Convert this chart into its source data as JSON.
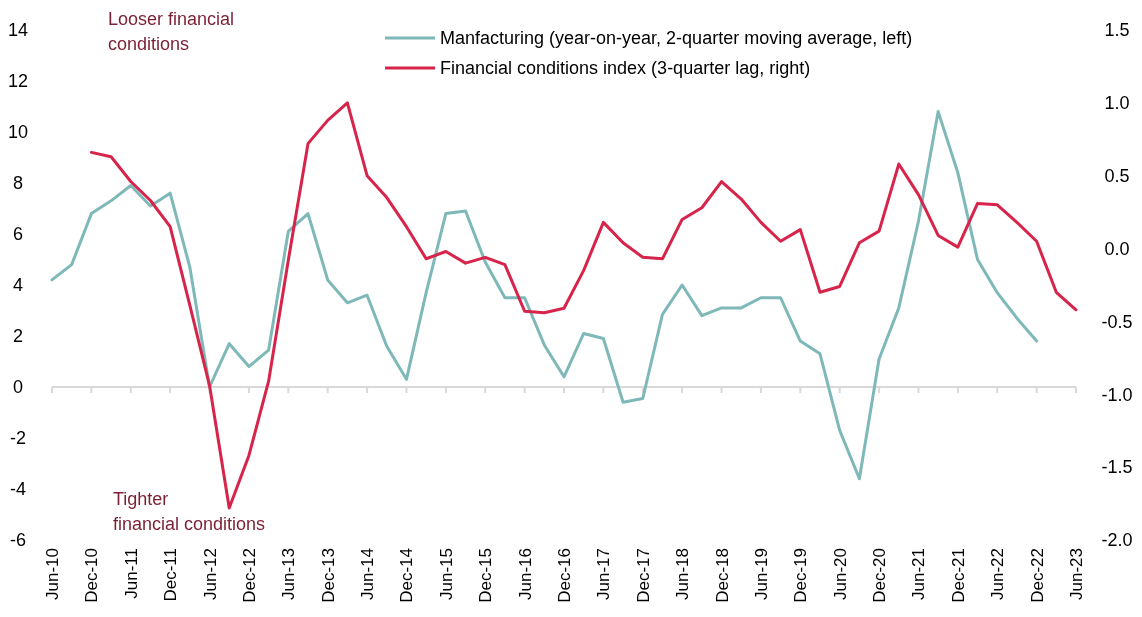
{
  "chart_data": {
    "type": "line",
    "categories": [
      "Jun-10",
      null,
      "Dec-10",
      null,
      "Jun-11",
      null,
      "Dec-11",
      null,
      "Jun-12",
      null,
      "Dec-12",
      null,
      "Jun-13",
      null,
      "Dec-13",
      null,
      "Jun-14",
      null,
      "Dec-14",
      null,
      "Jun-15",
      null,
      "Dec-15",
      null,
      "Jun-16",
      null,
      "Dec-16",
      null,
      "Jun-17",
      null,
      "Dec-17",
      null,
      "Jun-18",
      null,
      "Dec-18",
      null,
      "Jun-19",
      null,
      "Dec-19",
      null,
      "Jun-20",
      null,
      "Dec-20",
      null,
      "Jun-21",
      null,
      "Dec-21",
      null,
      "Jun-22",
      null,
      "Dec-22",
      null,
      "Jun-23"
    ],
    "series": [
      {
        "name": "Manfacturing (year-on-year, 2-quarter moving average, left)",
        "color": "#7fb8b8",
        "values": [
          4.2,
          4.8,
          6.8,
          7.3,
          7.9,
          7.1,
          7.6,
          4.7,
          0.0,
          1.7,
          0.8,
          1.45,
          6.1,
          6.8,
          4.2,
          3.3,
          3.6,
          1.6,
          0.3,
          3.7,
          6.8,
          6.9,
          4.9,
          3.5,
          3.5,
          1.65,
          0.4,
          2.1,
          1.9,
          -0.6,
          -0.45,
          2.85,
          4.0,
          2.8,
          3.1,
          3.1,
          3.5,
          3.5,
          1.8,
          1.3,
          -1.7,
          -3.6,
          1.1,
          3.1,
          6.5,
          10.8,
          8.4,
          5.0,
          3.7,
          2.7,
          1.8,
          null,
          null
        ]
      },
      {
        "name": "Financial conditions index (3-quarter lag, right)",
        "color": "#d6244a",
        "axis": "y2",
        "values": [
          null,
          null,
          0.66,
          0.63,
          0.46,
          0.33,
          0.15,
          -0.39,
          -0.94,
          -1.78,
          -1.42,
          -0.91,
          -0.08,
          0.72,
          0.88,
          1.0,
          0.5,
          0.35,
          0.15,
          -0.07,
          -0.02,
          -0.1,
          -0.06,
          -0.11,
          -0.43,
          -0.44,
          -0.41,
          -0.15,
          0.18,
          0.04,
          -0.06,
          -0.07,
          0.2,
          0.28,
          0.46,
          0.34,
          0.18,
          0.05,
          0.13,
          -0.3,
          -0.26,
          0.04,
          0.12,
          0.58,
          0.37,
          0.09,
          0.01,
          0.31,
          0.3,
          0.18,
          0.05,
          -0.3,
          -0.42
        ]
      }
    ],
    "ylim": [
      -6,
      14
    ],
    "yticks": [
      -6,
      -4,
      -2,
      0,
      2,
      4,
      6,
      8,
      10,
      12,
      14
    ],
    "y2lim": [
      -2,
      1.5
    ],
    "y2ticks": [
      {
        "value": -2,
        "label": "-2.0"
      },
      {
        "value": -1.5,
        "label": "-1.5"
      },
      {
        "value": -1,
        "label": "-1.0"
      },
      {
        "value": -0.5,
        "label": "-0.5"
      },
      {
        "value": 0,
        "label": "0.0"
      },
      {
        "value": 0.5,
        "label": "0.5"
      },
      {
        "value": 1,
        "label": "1.0"
      },
      {
        "value": 1.5,
        "label": "1.5"
      }
    ],
    "annotations": [
      "Looser financial\nconditions",
      "Tighter\nfinancial conditions"
    ],
    "ref_lines": [
      {
        "axis": "y",
        "value": 0,
        "color": "#d9d9d9"
      }
    ],
    "legend": "top",
    "grid": false,
    "marker": "none",
    "line_style": "solid"
  }
}
